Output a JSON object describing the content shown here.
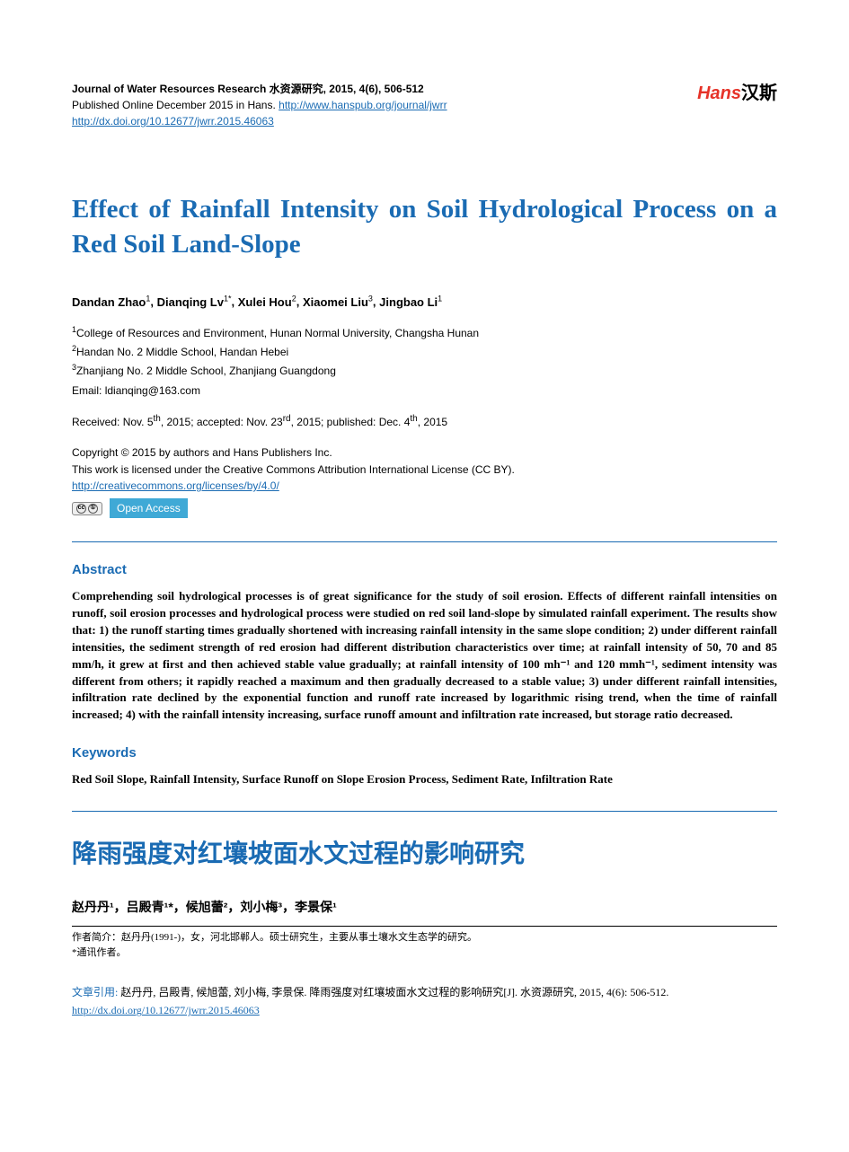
{
  "header": {
    "journal_line": "Journal of Water Resources Research  水资源研究, 2015, 4(6), 506-512",
    "published_line": "Published Online December 2015 in Hans. ",
    "journal_url": "http://www.hanspub.org/journal/jwrr",
    "doi_url": "http://dx.doi.org/10.12677/jwrr.2015.46063",
    "logo_hans": "Hans",
    "logo_cn": "汉斯"
  },
  "title_en": "Effect of Rainfall Intensity on Soil Hydrological Process on a Red Soil Land-Slope",
  "authors_en": [
    {
      "name": "Dandan Zhao",
      "sup": "1"
    },
    {
      "name": "Dianqing Lv",
      "sup": "1*"
    },
    {
      "name": "Xulei Hou",
      "sup": "2"
    },
    {
      "name": "Xiaomei Liu",
      "sup": "3"
    },
    {
      "name": "Jingbao Li",
      "sup": "1"
    }
  ],
  "affiliations": [
    {
      "num": "1",
      "text": "College of Resources and Environment, Hunan Normal University, Changsha Hunan"
    },
    {
      "num": "2",
      "text": "Handan No. 2 Middle School, Handan Hebei"
    },
    {
      "num": "3",
      "text": "Zhanjiang No. 2 Middle School, Zhanjiang Guangdong"
    }
  ],
  "email_label": "Email: ",
  "email": "ldianqing@163.com",
  "dates": "Received: Nov. 5th, 2015; accepted: Nov. 23rd, 2015; published: Dec. 4th, 2015",
  "copyright_line1": "Copyright © 2015 by authors and Hans Publishers Inc.",
  "copyright_line2": "This work is licensed under the Creative Commons Attribution International License (CC BY).",
  "cc_url": "http://creativecommons.org/licenses/by/4.0/",
  "oa_label": "Open Access",
  "abstract_heading": "Abstract",
  "abstract_text": "Comprehending soil hydrological processes is of great significance for the study of soil erosion. Effects of different rainfall intensities on runoff, soil erosion processes and hydrological process were studied on red soil land-slope by simulated rainfall experiment. The results show that: 1) the runoff starting times gradually shortened with increasing rainfall intensity in the same slope condition; 2) under different rainfall intensities, the sediment strength of red erosion had different distribution characteristics over time; at rainfall intensity of 50, 70 and 85 mm/h, it grew at first and then achieved stable value gradually; at rainfall intensity of 100 mh⁻¹ and 120 mmh⁻¹, sediment intensity was different from others; it rapidly reached a maximum and then gradually decreased to a stable value; 3) under different rainfall intensities, infiltration rate declined by the exponential function and runoff rate increased by logarithmic rising trend, when the time of rainfall increased; 4) with the rainfall intensity increasing, surface runoff amount and infiltration rate increased, but storage ratio decreased.",
  "keywords_heading": "Keywords",
  "keywords_text": "Red Soil Slope, Rainfall Intensity, Surface Runoff on Slope Erosion Process, Sediment Rate, Infiltration Rate",
  "title_cn": "降雨强度对红壤坡面水文过程的影响研究",
  "authors_cn_text": "赵丹丹¹，吕殿青¹*，候旭蕾²，刘小梅³，李景保¹",
  "footnote1": "作者简介：赵丹丹(1991-)，女，河北邯郸人。硕士研究生，主要从事土壤水文生态学的研究。",
  "footnote2": "*通讯作者。",
  "citation_label": "文章引用: ",
  "citation_text": "赵丹丹, 吕殿青, 候旭蕾, 刘小梅, 李景保. 降雨强度对红壤坡面水文过程的影响研究[J]. 水资源研究, 2015, 4(6): 506-512. ",
  "citation_url": "http://dx.doi.org/10.12677/jwrr.2015.46063",
  "colors": {
    "link": "#1a6bb3",
    "title": "#1a6bb3",
    "logo_red": "#e63329",
    "oa_bg": "#3fa9d6",
    "text": "#000000",
    "bg": "#ffffff"
  }
}
